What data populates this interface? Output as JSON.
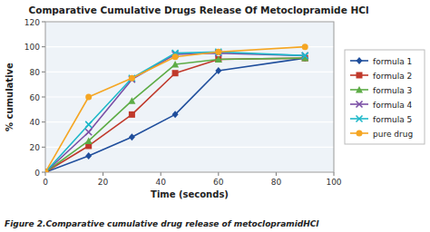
{
  "chart_data": {
    "type": "line",
    "title": "Comparative Cumulative Drugs Release Of Metoclopramide HCl",
    "x_label": "Time (seconds)",
    "y_label": "% cumulative",
    "caption": "Figure 2.Comparative cumulative drug release of metoclopramidHCl",
    "x": [
      0,
      15,
      30,
      45,
      60,
      90
    ],
    "series": [
      {
        "name": "formula 1",
        "color": "#1f4e9c",
        "marker": "diamond",
        "values": [
          0,
          13,
          28,
          46,
          81,
          91
        ]
      },
      {
        "name": "formula 2",
        "color": "#c0392b",
        "marker": "square",
        "values": [
          0,
          21,
          46,
          79,
          90,
          91
        ]
      },
      {
        "name": "formula 3",
        "color": "#5dac46",
        "marker": "triangle",
        "values": [
          0,
          25,
          57,
          86,
          90,
          91
        ]
      },
      {
        "name": "formula 4",
        "color": "#7b4fa6",
        "marker": "x",
        "values": [
          0,
          32,
          74,
          94,
          95,
          93
        ]
      },
      {
        "name": "formula 5",
        "color": "#1eb8c9",
        "marker": "x",
        "values": [
          0,
          38,
          75,
          95,
          96,
          93
        ]
      },
      {
        "name": "pure drug",
        "color": "#f5a623",
        "marker": "circle",
        "values": [
          0,
          60,
          75,
          92,
          96,
          100
        ]
      }
    ],
    "xlim": [
      0,
      100
    ],
    "ylim": [
      0,
      120
    ],
    "xticks": [
      0,
      20,
      40,
      60,
      80,
      100
    ],
    "yticks": [
      0,
      20,
      40,
      60,
      80,
      100,
      120
    ],
    "grid": "y",
    "legend": "right"
  }
}
